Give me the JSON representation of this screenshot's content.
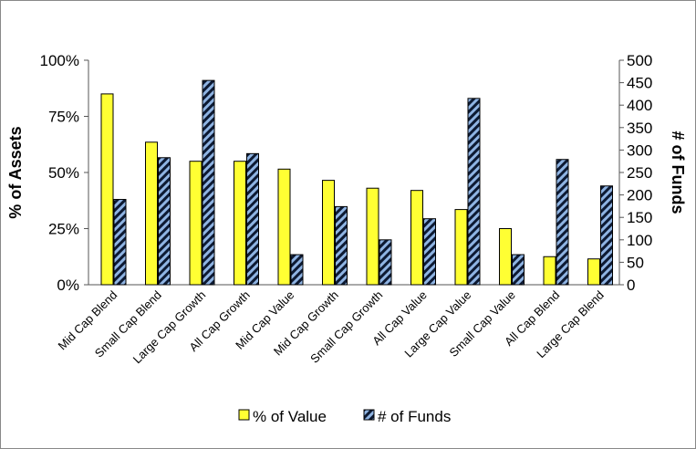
{
  "chart_data": {
    "type": "bar",
    "categories": [
      "Mid Cap Blend",
      "Small Cap Blend",
      "Large Cap Growth",
      "All Cap Growth",
      "Mid Cap Value",
      "Mid Cap Growth",
      "Small Cap Growth",
      "All Cap Value",
      "Large Cap Value",
      "Small Cap Value",
      "All Cap Blend",
      "Large Cap Blend"
    ],
    "series": [
      {
        "name": "% of Value",
        "axis": "left",
        "values": [
          85,
          63.5,
          55,
          55,
          51.5,
          46.5,
          43,
          42,
          33.5,
          25,
          12.5,
          11.5
        ],
        "color": "#ffff33"
      },
      {
        "name": "# of Funds",
        "axis": "right",
        "values": [
          190,
          283,
          455,
          292,
          67,
          174,
          100,
          147,
          415,
          67,
          279,
          220
        ],
        "color": "#8fb4e3",
        "pattern": "diagonal-stripes-dark"
      }
    ],
    "ylabel": "% of Assets",
    "y2label": "# of Funds",
    "ylim": [
      0,
      100
    ],
    "y2lim": [
      0,
      500
    ],
    "yticks": [
      "0%",
      "25%",
      "50%",
      "75%",
      "100%"
    ],
    "y2ticks": [
      "0",
      "50",
      "100",
      "150",
      "200",
      "250",
      "300",
      "350",
      "400",
      "450",
      "500"
    ],
    "grid": false,
    "legend": "bottom"
  }
}
